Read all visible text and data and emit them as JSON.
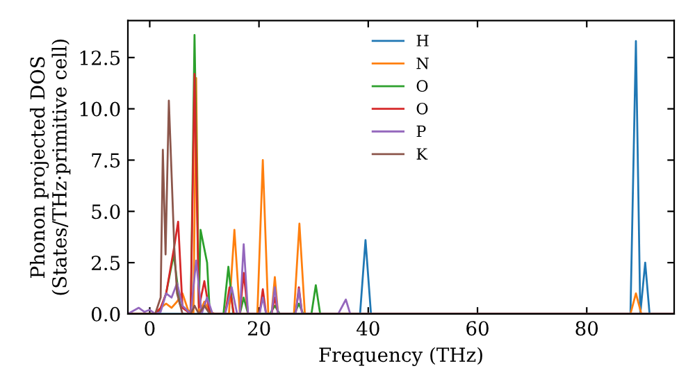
{
  "chart_data": {
    "type": "line",
    "xlabel": "Frequency (THz)",
    "ylabel": "Phonon projected DOS\n(States/THz·primitive cell)",
    "xlim": [
      -4,
      96
    ],
    "xticks": [
      0,
      20,
      40,
      60,
      80
    ],
    "ylim": [
      0,
      14.3
    ],
    "yticks": [
      {
        "value": 0,
        "label": "0.0"
      },
      {
        "value": 2.5,
        "label": "2.5"
      },
      {
        "value": 5,
        "label": "5.0"
      },
      {
        "value": 7.5,
        "label": "7.5"
      },
      {
        "value": 10,
        "label": "10.0"
      },
      {
        "value": 12.5,
        "label": "12.5"
      }
    ],
    "legend": "top",
    "grid": false,
    "marker": "none",
    "line_style": "solid",
    "series": [
      {
        "name": "H",
        "color": "#1f77b4",
        "x": [
          -4,
          38.5,
          39.5,
          40.5,
          88,
          89,
          89.8,
          90.7,
          91.5,
          96
        ],
        "values": [
          0,
          0,
          3.6,
          0,
          0,
          13.3,
          0,
          2.5,
          0,
          0
        ]
      },
      {
        "name": "N",
        "color": "#ff7f0e",
        "x": [
          -4,
          1,
          2,
          3,
          4,
          5,
          6,
          7,
          8,
          8.5,
          9,
          10,
          11,
          12,
          14.5,
          15.5,
          16.5,
          19.7,
          20.7,
          21.7,
          22.3,
          22.9,
          23.5,
          26.4,
          27.4,
          28.4,
          88,
          89,
          90,
          96
        ],
        "values": [
          0,
          0,
          0.3,
          0.5,
          0.3,
          0.6,
          1.0,
          0.2,
          0,
          11.5,
          0,
          0.6,
          0.1,
          0,
          0,
          4.1,
          0,
          0,
          7.5,
          0,
          0,
          1.8,
          0,
          0,
          4.4,
          0,
          0,
          1.0,
          0,
          0
        ]
      },
      {
        "name": "O",
        "color": "#2ca02c",
        "x": [
          -4,
          1,
          2,
          3,
          4.4,
          5.5,
          7.5,
          8.2,
          9,
          9.3,
          10.5,
          11,
          13.5,
          14.4,
          15.3,
          16.5,
          17.2,
          18,
          22,
          22.9,
          23.8,
          26.5,
          27.3,
          28.1,
          29.6,
          30.4,
          31.2,
          96
        ],
        "values": [
          0,
          0,
          0.2,
          1,
          2.9,
          0.5,
          0,
          13.6,
          0.5,
          4.1,
          2.5,
          0,
          0,
          2.3,
          0,
          0,
          0.8,
          0,
          0,
          0.4,
          0,
          0,
          0.5,
          0,
          0,
          1.4,
          0,
          0
        ]
      },
      {
        "name": "O",
        "color": "#d62728",
        "x": [
          -4,
          1,
          2,
          3,
          4.5,
          5.2,
          6,
          7.5,
          8.2,
          9,
          10,
          11,
          13.8,
          14.6,
          15.4,
          16.5,
          17.2,
          18,
          20.1,
          20.7,
          21.3,
          22.3,
          22.9,
          23.5,
          26.7,
          27.3,
          27.9,
          96
        ],
        "values": [
          0,
          0,
          0.3,
          1.0,
          3.3,
          4.5,
          0.3,
          0,
          11.7,
          0.3,
          1.6,
          0,
          0,
          1.3,
          0,
          0,
          2.0,
          0,
          0,
          1.2,
          0,
          0,
          0.8,
          0,
          0,
          1.3,
          0,
          0
        ]
      },
      {
        "name": "P",
        "color": "#9467bd",
        "x": [
          -4,
          -2,
          -1,
          0,
          1,
          2,
          3,
          4,
          5,
          6,
          7.5,
          8.5,
          9.5,
          10.5,
          11.5,
          13.8,
          15,
          16,
          16.5,
          17.2,
          18,
          20.1,
          20.7,
          21.3,
          22.3,
          22.9,
          23.5,
          26.7,
          27.3,
          27.9,
          34.5,
          35.9,
          36.7,
          96
        ],
        "values": [
          0,
          0.3,
          0.1,
          0.2,
          0,
          0.1,
          1.0,
          0.8,
          1.5,
          0.4,
          0,
          2.6,
          0,
          0.8,
          0,
          0,
          1.3,
          0,
          0,
          3.4,
          0,
          0,
          0.8,
          0,
          0,
          1.3,
          0,
          0,
          1.2,
          0,
          0,
          0.7,
          0,
          0
        ]
      },
      {
        "name": "K",
        "color": "#8c564b",
        "x": [
          -4,
          1,
          2,
          2.4,
          2.9,
          3.5,
          4.5,
          5,
          6,
          7.5,
          8.2,
          9,
          10,
          11,
          96
        ],
        "values": [
          0,
          0,
          0.8,
          8.0,
          2.9,
          10.4,
          3.2,
          1.0,
          0,
          0,
          0.4,
          0,
          0.4,
          0,
          0
        ]
      }
    ]
  }
}
